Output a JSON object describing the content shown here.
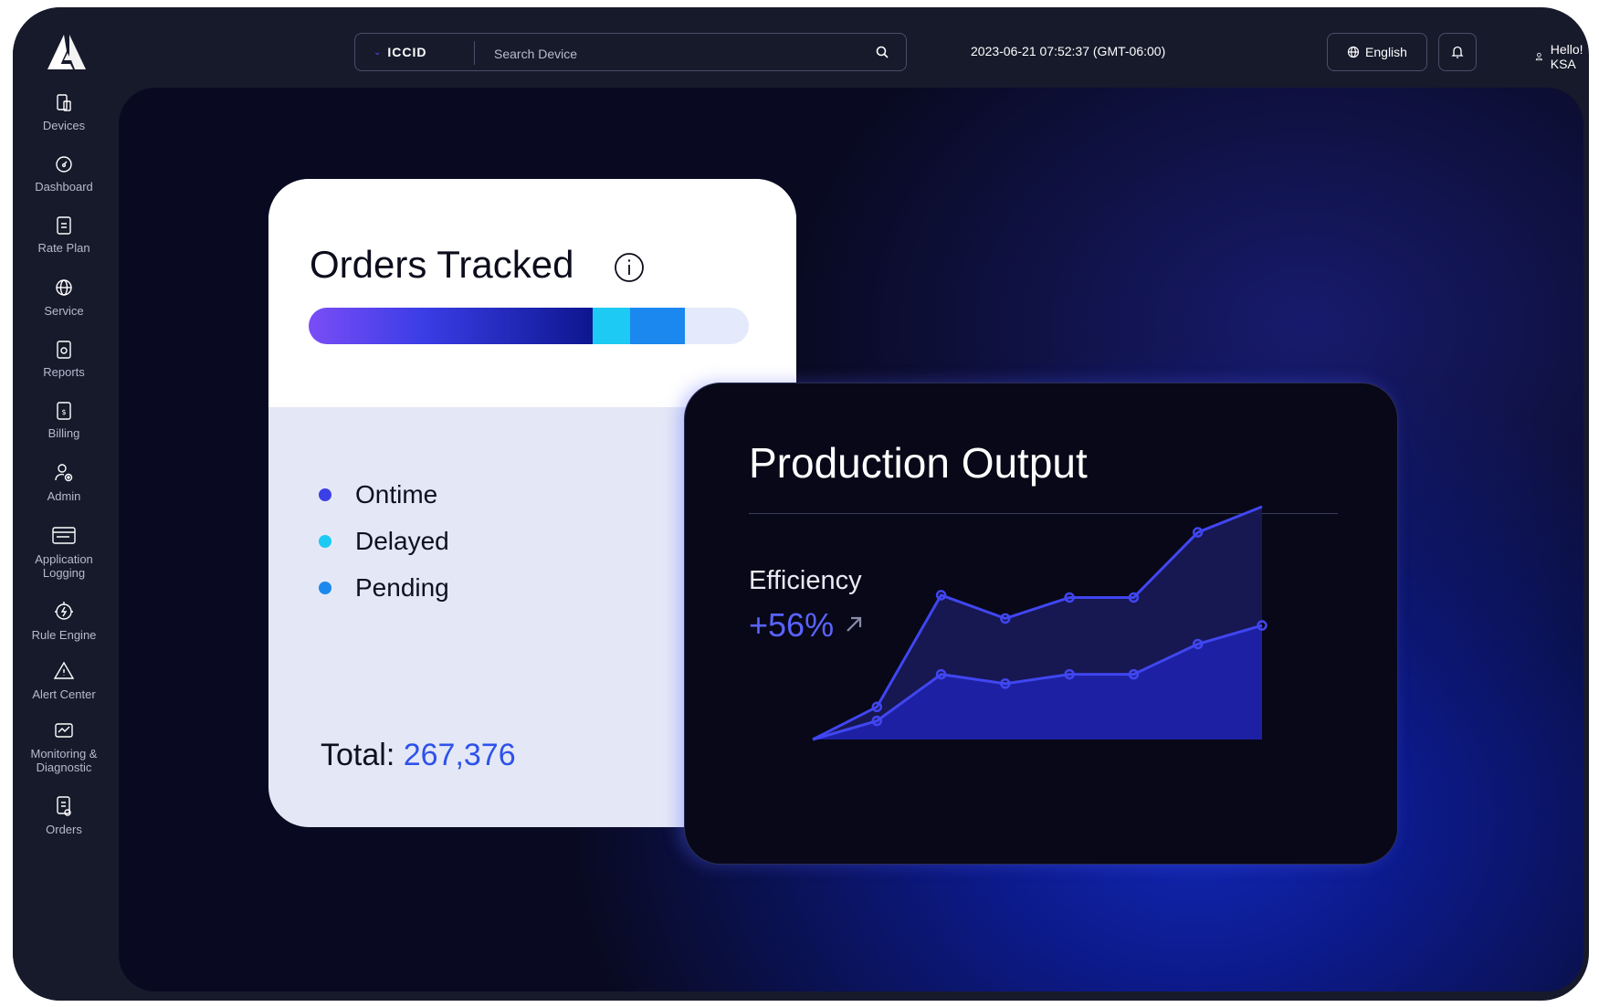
{
  "sidebar": {
    "items": [
      {
        "label": "Devices",
        "icon": "devices-icon"
      },
      {
        "label": "Dashboard",
        "icon": "dashboard-icon"
      },
      {
        "label": "Rate Plan",
        "icon": "rate-plan-icon"
      },
      {
        "label": "Service",
        "icon": "globe-icon"
      },
      {
        "label": "Reports",
        "icon": "reports-icon"
      },
      {
        "label": "Billing",
        "icon": "billing-icon"
      },
      {
        "label": "Admin",
        "icon": "admin-icon"
      },
      {
        "label": "Application\nLogging",
        "icon": "application-logging-icon"
      },
      {
        "label": "Rule Engine",
        "icon": "rule-engine-icon"
      },
      {
        "label": "Alert Center",
        "icon": "alert-icon"
      },
      {
        "label": "Monitoring &\nDiagnostic",
        "icon": "monitoring-icon"
      },
      {
        "label": "Orders",
        "icon": "orders-icon"
      }
    ]
  },
  "header": {
    "search_type": "ICCID",
    "search_placeholder": "Search Device",
    "datetime": "2023-06-21 07:52:37 (GMT-06:00)",
    "language": "English",
    "greeting": "Hello! KSA"
  },
  "orders_card": {
    "title": "Orders Tracked",
    "legend": [
      {
        "label": "Ontime",
        "color": "#3c3fe6"
      },
      {
        "label": "Delayed",
        "color": "#1ccaf3"
      },
      {
        "label": "Pending",
        "color": "#1b88ef"
      }
    ],
    "bar_fractions": {
      "ontime": 0.645,
      "delayed": 0.085,
      "pending": 0.125
    },
    "total_label": "Total:",
    "total_value": "267,376"
  },
  "production_card": {
    "title": "Production Output",
    "efficiency_label": "Efficiency",
    "efficiency_value": "+56%"
  },
  "chart_data": {
    "type": "area",
    "x": [
      0,
      1,
      2,
      3,
      4,
      5,
      6,
      7
    ],
    "series": [
      {
        "values": [
          0,
          14,
          62,
          52,
          61,
          61,
          89,
          100
        ],
        "color": "#4046f0"
      },
      {
        "values": [
          0,
          8,
          28,
          24,
          28,
          28,
          41,
          49
        ],
        "color": "#4046f0"
      }
    ],
    "ylim": [
      0,
      100
    ],
    "grid": false
  },
  "colors": {
    "accent": "#3b46e0",
    "total_value": "#2e52ea",
    "efficiency": "#5a63ff"
  }
}
